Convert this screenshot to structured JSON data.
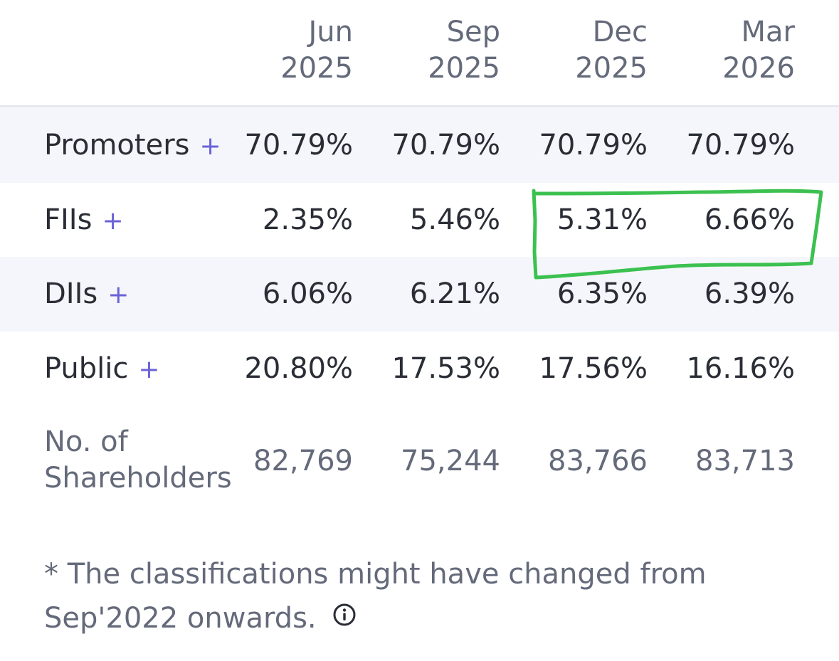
{
  "columns": [
    {
      "month": "Jun",
      "year": "2025"
    },
    {
      "month": "Sep",
      "year": "2025"
    },
    {
      "month": "Dec",
      "year": "2025"
    },
    {
      "month": "Mar",
      "year": "2026"
    }
  ],
  "rows": [
    {
      "label": "Promoters",
      "expand": "+",
      "values": [
        "70.79%",
        "70.79%",
        "70.79%",
        "70.79%"
      ]
    },
    {
      "label": "FIIs",
      "expand": "+",
      "values": [
        "2.35%",
        "5.46%",
        "5.31%",
        "6.66%"
      ]
    },
    {
      "label": "DIIs",
      "expand": "+",
      "values": [
        "6.06%",
        "6.21%",
        "6.35%",
        "6.39%"
      ]
    },
    {
      "label": "Public",
      "expand": "+",
      "values": [
        "20.80%",
        "17.53%",
        "17.56%",
        "16.16%"
      ]
    }
  ],
  "shareholders": {
    "label_line1": "No. of",
    "label_line2": "Shareholders",
    "values": [
      "82,769",
      "75,244",
      "83,766",
      "83,713"
    ]
  },
  "footnote": {
    "line1": "* The classifications might have changed from",
    "line2": "Sep'2022 onwards."
  },
  "colors": {
    "accent_plus": "#6a62d8",
    "text_dark": "#2a2d35",
    "text_muted": "#646a7a",
    "row_shade": "#f5f6fb",
    "highlight_stroke": "#3cc150"
  },
  "icons": {
    "info": "info-circle-icon"
  }
}
